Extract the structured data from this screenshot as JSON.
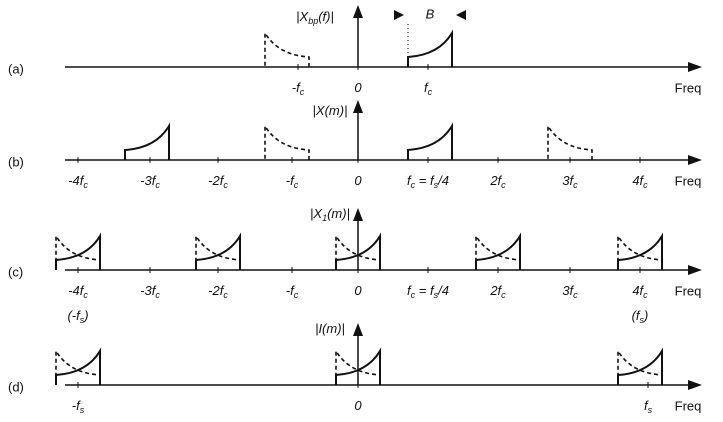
{
  "panels": [
    {
      "label": "(a)",
      "axis_label": [
        "|X",
        "bp",
        "(f)|"
      ],
      "bandwidth_label": "B",
      "ticks": [
        [
          "-f",
          "c"
        ],
        [
          "0"
        ],
        [
          "f",
          "c"
        ]
      ],
      "axis_name": "Freq"
    },
    {
      "label": "(b)",
      "axis_label": [
        "|X(m)|"
      ],
      "ticks": [
        [
          "-4f",
          "c"
        ],
        [
          "-3f",
          "c"
        ],
        [
          "-2f",
          "c"
        ],
        [
          "-f",
          "c"
        ],
        [
          "0"
        ],
        [
          "f",
          "c",
          " = f",
          "s",
          "/4"
        ],
        [
          "2f",
          "c"
        ],
        [
          "3f",
          "c"
        ],
        [
          "4f",
          "c"
        ]
      ],
      "axis_name": "Freq"
    },
    {
      "label": "(c)",
      "axis_label": [
        "|X",
        "1",
        "(m)|"
      ],
      "ticks": [
        [
          "-4f",
          "c"
        ],
        [
          "-3f",
          "c"
        ],
        [
          "-2f",
          "c"
        ],
        [
          "-f",
          "c"
        ],
        [
          "0"
        ],
        [
          "f",
          "c",
          " = f",
          "s",
          "/4"
        ],
        [
          "2f",
          "c"
        ],
        [
          "3f",
          "c"
        ],
        [
          "4f",
          "c"
        ]
      ],
      "extra_ticks": [
        [
          "(-f",
          "s",
          ")"
        ],
        [
          "(f",
          "s",
          ")"
        ]
      ],
      "axis_name": "Freq"
    },
    {
      "label": "(d)",
      "axis_label": [
        "|I(m)|"
      ],
      "ticks": [
        [
          "-f",
          "s"
        ],
        [
          "0"
        ],
        [
          "f",
          "s"
        ]
      ],
      "axis_name": "Freq"
    }
  ]
}
